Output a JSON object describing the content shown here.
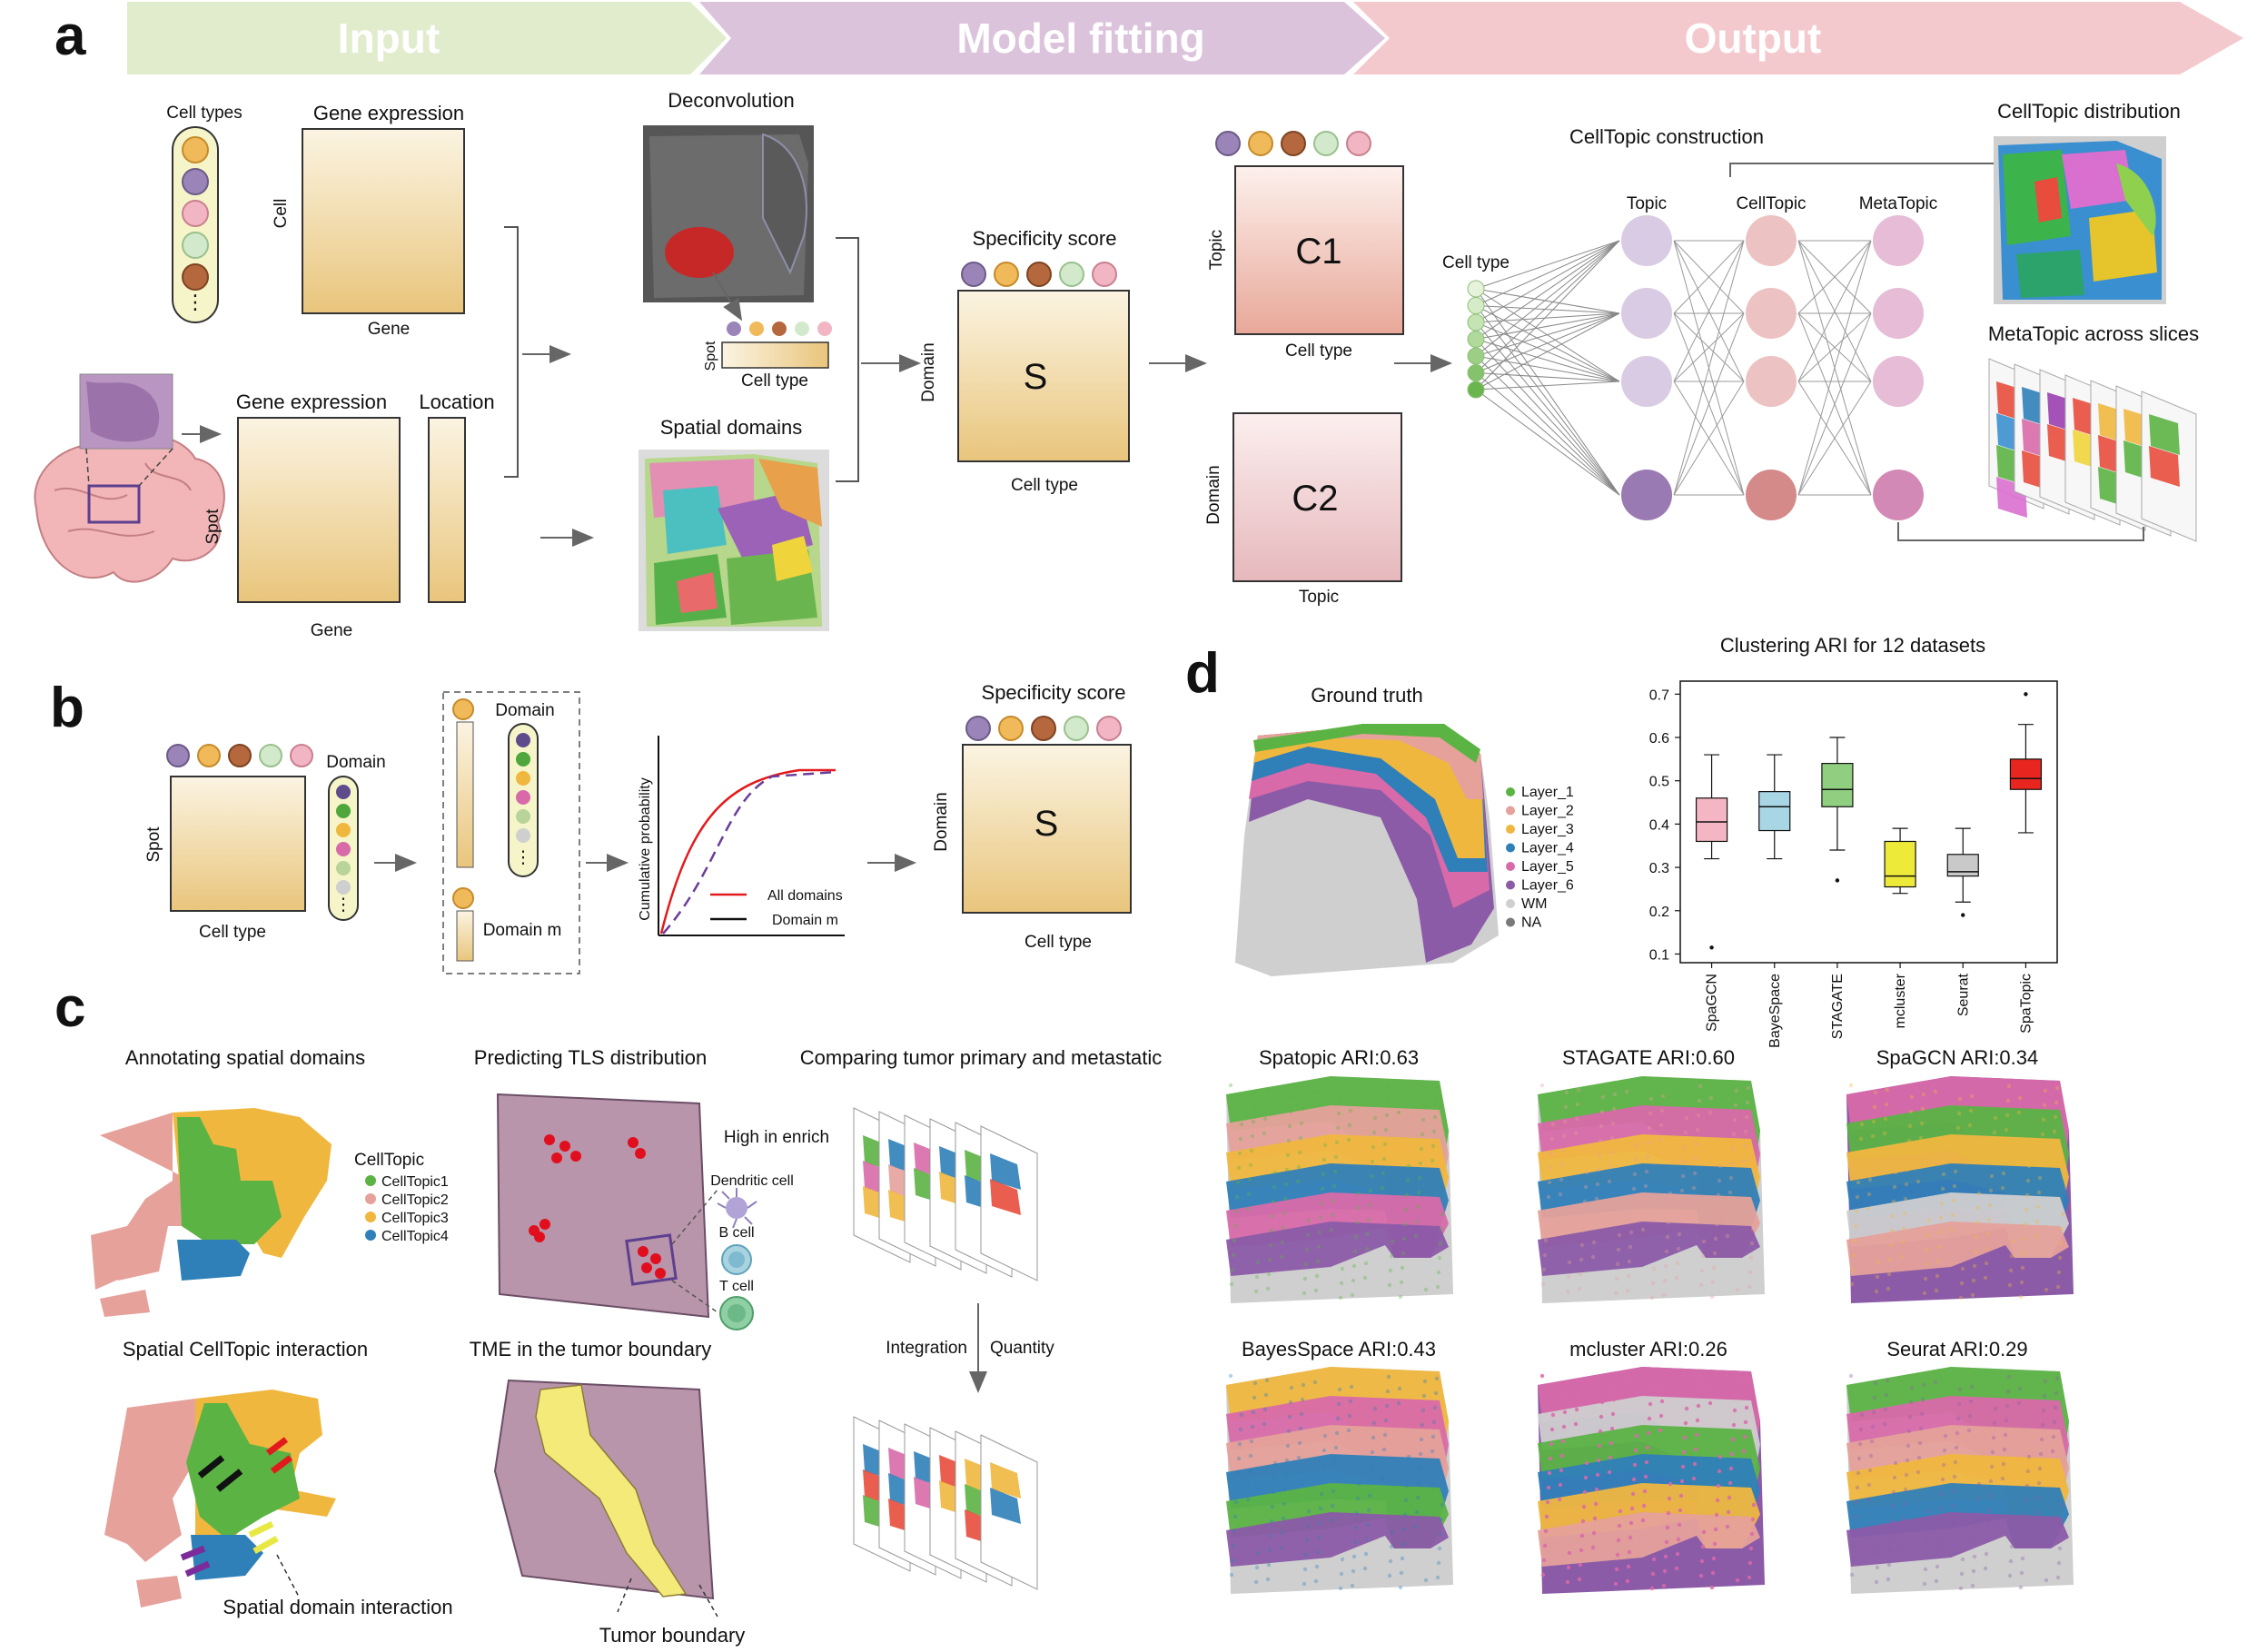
{
  "colors": {
    "input_band": "#e1eccd",
    "fitting_band": "#dcc3dc",
    "output_band": "#f4c9cd",
    "gene_light": "#fbf3df",
    "gene_dark": "#e9c47a",
    "topic": "#d9cbe3",
    "celltopic": "#ecc3c2",
    "metatopic": "#e6bcd6"
  },
  "panel_a": {
    "label": "a",
    "bands": [
      "Input",
      "Model fitting",
      "Output"
    ],
    "cell_types": "Cell types",
    "gene_expression": "Gene expression",
    "cell": "Cell",
    "gene": "Gene",
    "gene_expression_2": "Gene expression",
    "location": "Location",
    "spot": "Spot",
    "gene_2": "Gene",
    "deconvolution": "Deconvolution",
    "spot_small": "Spot",
    "cell_type_small": "Cell type",
    "spatial_domains": "Spatial domains",
    "specificity_score": "Specificity score",
    "domain": "Domain",
    "s": "S",
    "cell_type": "Cell type",
    "topic": "Topic",
    "c1": "C1",
    "cell_type_c1": "Cell type",
    "domain_c2": "Domain",
    "c2": "C2",
    "topic_c2": "Topic",
    "celltopic_construction": "CellTopic construction",
    "cell_type_nodes": "Cell type",
    "topic_col": "Topic",
    "celltopic_col": "CellTopic",
    "metatopic_col": "MetaTopic",
    "celltopic_distribution": "CellTopic  distribution",
    "metatopic_across": "MetaTopic across slices"
  },
  "panel_b": {
    "label": "b",
    "domain": "Domain",
    "spot": "Spot",
    "cell_type": "Cell type",
    "domain_box": "Domain",
    "domain_m": "Domain m",
    "y_axis": "Cumulative probability",
    "legend_all": "All domains",
    "legend_m": "Domain m",
    "specificity_score": "Specificity score",
    "domain_s": "Domain",
    "s": "S",
    "cell_type_s": "Cell type"
  },
  "panel_c": {
    "label": "c",
    "annotating": "Annotating spatial domains",
    "legend_title": "CellTopic",
    "legend": [
      "CellTopic1",
      "CellTopic2",
      "CellTopic3",
      "CellTopic4"
    ],
    "tls": "Predicting TLS distribution",
    "high_in_enrich": "High in enrich",
    "dendritic": "Dendritic cell",
    "bcell": "B cell",
    "tcell": "T cell",
    "comparing": "Comparing tumor primary and metastatic",
    "integration": "Integration",
    "quantity": "Quantity",
    "interaction": "Spatial CellTopic interaction",
    "domain_interaction": "Spatial domain interaction",
    "tme": "TME in the tumor boundary",
    "tumor_boundary": "Tumor boundary"
  },
  "panel_d": {
    "label": "d",
    "ground_truth": "Ground truth",
    "layers": [
      "Layer_1",
      "Layer_2",
      "Layer_3",
      "Layer_4",
      "Layer_5",
      "Layer_6",
      "WM",
      "NA"
    ],
    "layer_colors": [
      "#5bb344",
      "#e5a19a",
      "#f0b73f",
      "#2f7fb8",
      "#d86aa9",
      "#8b5ba8",
      "#cfcfcf",
      "#7a7a7a"
    ],
    "methods": [
      {
        "title": "Spatopic ARI:0.63"
      },
      {
        "title": "STAGATE ARI:0.60"
      },
      {
        "title": "SpaGCN ARI:0.34"
      },
      {
        "title": "BayesSpace ARI:0.43"
      },
      {
        "title": "mcluster ARI:0.26"
      },
      {
        "title": "Seurat ARI:0.29"
      }
    ]
  },
  "chart_data": {
    "type": "box",
    "title": "Clustering ARI for 12 datasets",
    "categories": [
      "SpaGCN",
      "BayeSpace",
      "STAGATE",
      "mcluster",
      "Seurat",
      "SpaTopic"
    ],
    "ylim": [
      0.08,
      0.73
    ],
    "yticks": [
      0.1,
      0.2,
      0.3,
      0.4,
      0.5,
      0.6,
      0.7
    ],
    "colors": [
      "#f4b6c2",
      "#a9d6e5",
      "#8fcf7f",
      "#eeea3a",
      "#c9c9c9",
      "#e8261f"
    ],
    "boxes": [
      {
        "whislo": 0.32,
        "q1": 0.36,
        "med": 0.405,
        "q3": 0.46,
        "whishi": 0.56,
        "fliers": [
          0.115
        ]
      },
      {
        "whislo": 0.32,
        "q1": 0.385,
        "med": 0.44,
        "q3": 0.475,
        "whishi": 0.56,
        "fliers": []
      },
      {
        "whislo": 0.34,
        "q1": 0.44,
        "med": 0.48,
        "q3": 0.54,
        "whishi": 0.6,
        "fliers": [
          0.27
        ]
      },
      {
        "whislo": 0.24,
        "q1": 0.255,
        "med": 0.28,
        "q3": 0.36,
        "whishi": 0.39,
        "fliers": []
      },
      {
        "whislo": 0.22,
        "q1": 0.28,
        "med": 0.29,
        "q3": 0.33,
        "whishi": 0.39,
        "fliers": [
          0.19
        ]
      },
      {
        "whislo": 0.38,
        "q1": 0.48,
        "med": 0.505,
        "q3": 0.55,
        "whishi": 0.63,
        "fliers": [
          0.7
        ]
      }
    ]
  }
}
